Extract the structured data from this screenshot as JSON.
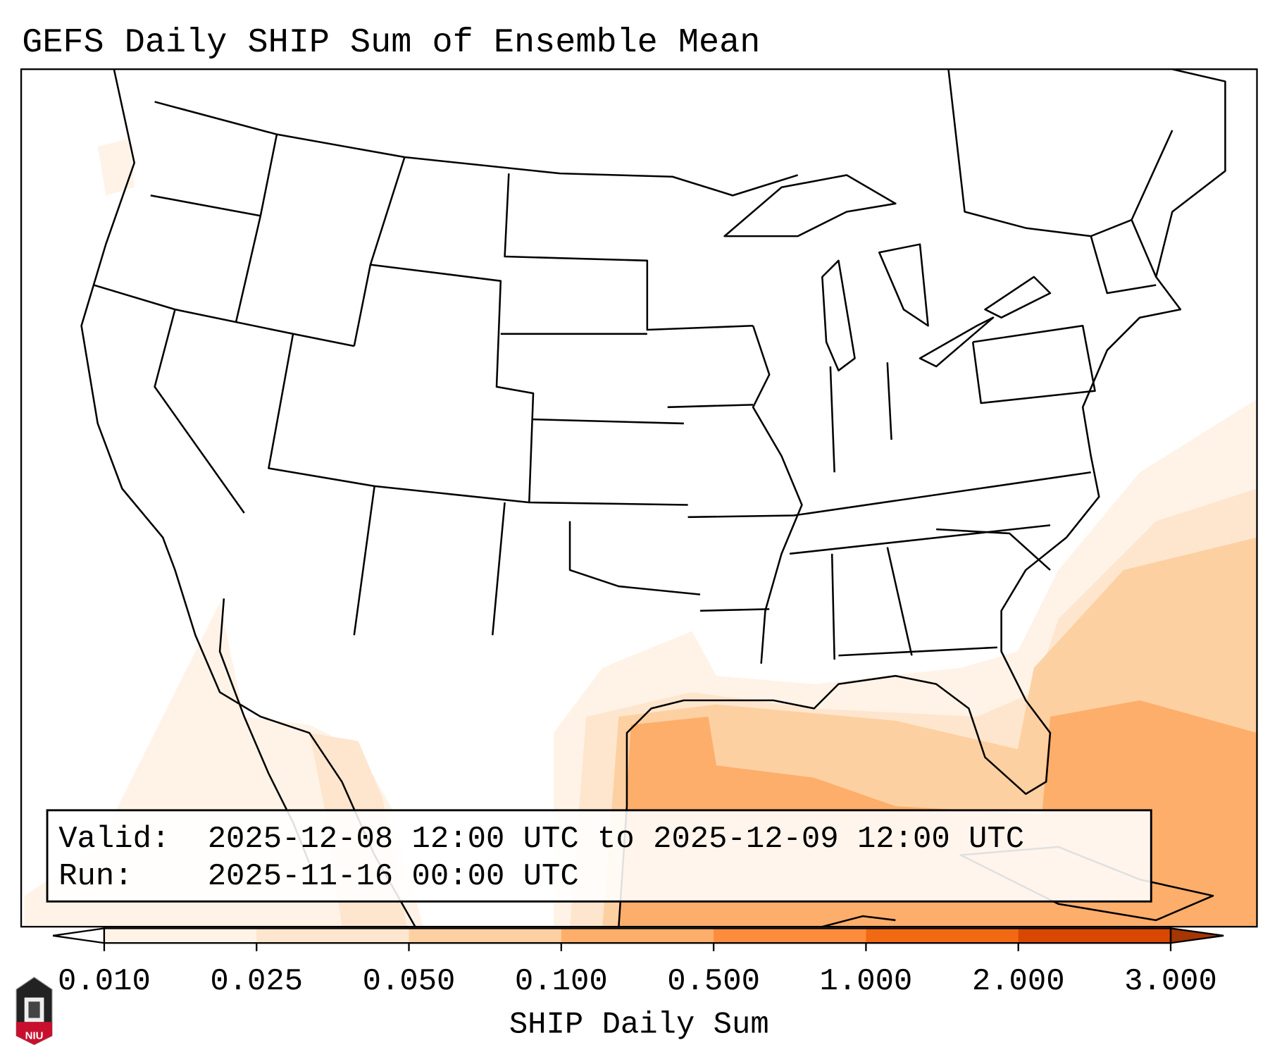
{
  "title": "GEFS Daily SHIP Sum of Ensemble Mean",
  "info_box": {
    "valid_label": "Valid:",
    "valid_value": "2025-12-08 12:00 UTC to 2025-12-09 12:00 UTC",
    "run_label": "Run:",
    "run_value": "2025-11-16 00:00 UTC"
  },
  "colorbar": {
    "label": "SHIP Daily Sum",
    "ticks": [
      "0.010",
      "0.025",
      "0.050",
      "0.100",
      "0.500",
      "1.000",
      "2.000",
      "3.000"
    ],
    "colors": [
      "#fff3e7",
      "#fee6ce",
      "#fdd0a2",
      "#fdae6b",
      "#fd8d3c",
      "#f16913",
      "#d94801"
    ],
    "under_color": "#ffffff",
    "over_color": "#a63603"
  },
  "logo": {
    "text": "NIU"
  }
}
